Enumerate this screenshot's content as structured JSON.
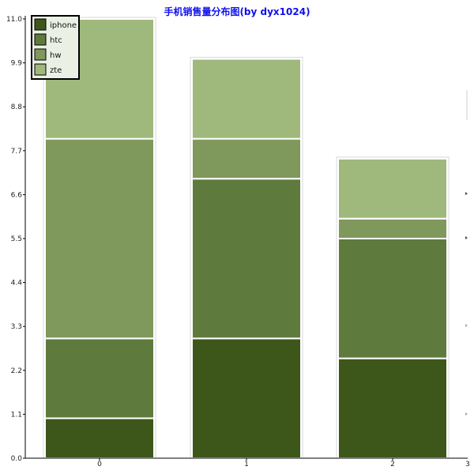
{
  "chart_data": {
    "type": "bar",
    "stacked": true,
    "title": "手机销售量分布图(by dyx1024)",
    "categories": [
      "0",
      "1",
      "2"
    ],
    "series": [
      {
        "name": "iphone",
        "values": [
          1,
          3,
          2.5
        ]
      },
      {
        "name": "htc",
        "values": [
          2,
          4,
          3
        ]
      },
      {
        "name": "hw",
        "values": [
          5,
          1,
          0.5
        ]
      },
      {
        "name": "zte",
        "values": [
          3,
          2,
          1.5
        ]
      }
    ],
    "colors": {
      "iphone": "#3d571b",
      "htc": "#5f7a3d",
      "hw": "#7f985c",
      "zte": "#9fb87c"
    },
    "ylim": [
      0,
      11
    ],
    "y_ticks": [
      "0.0",
      "1.1",
      "2.2",
      "3.3",
      "4.4",
      "5.5",
      "6.6",
      "7.7",
      "8.8",
      "9.9",
      "11.0"
    ],
    "x_ticks": [
      "0",
      "1",
      "2"
    ],
    "x_end_label": "3",
    "legend_position": "top-left",
    "xlabel": "",
    "ylabel": "",
    "grid": false
  }
}
